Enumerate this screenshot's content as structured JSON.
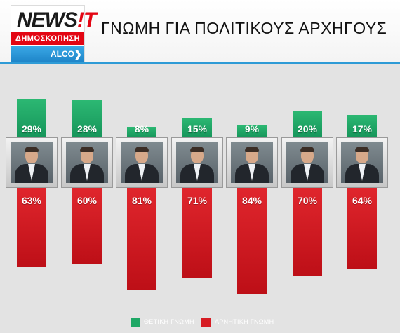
{
  "logo": {
    "news": "NEWS",
    "excl": "!T",
    "sub": "ΔΗΜΟΣΚΟΠΗΣΗ",
    "alco": "ALCO"
  },
  "colors": {
    "positive": "#1fa866",
    "negative": "#d61c23",
    "accent": "#2e9bd6"
  },
  "legend": {
    "positive_label": "ΘΕΤΙΚΗ ΓΝΩΜΗ",
    "negative_label": "ΑΡΝΗΤΙΚΗ ΓΝΩΜΗ"
  },
  "chart_data": {
    "type": "bar",
    "title": "ΓΝΩΜΗ ΓΙΑ ΠΟΛΙΤΙΚΟΥΣ ΑΡΧΗΓΟΥΣ",
    "xlabel": "",
    "ylabel": "",
    "series": [
      {
        "name": "ΘΕΤΙΚΗ ΓΝΩΜΗ",
        "values": [
          29,
          28,
          8,
          15,
          9,
          20,
          17
        ],
        "labels": [
          "29%",
          "28%",
          "8%",
          "15%",
          "9%",
          "20%",
          "17%"
        ]
      },
      {
        "name": "ΑΡΝΗΤΙΚΗ ΓΝΩΜΗ",
        "values": [
          63,
          60,
          81,
          71,
          84,
          70,
          64
        ],
        "labels": [
          "63%",
          "60%",
          "81%",
          "71%",
          "84%",
          "70%",
          "64%"
        ]
      }
    ],
    "legend_position": "bottom",
    "grid": false
  }
}
